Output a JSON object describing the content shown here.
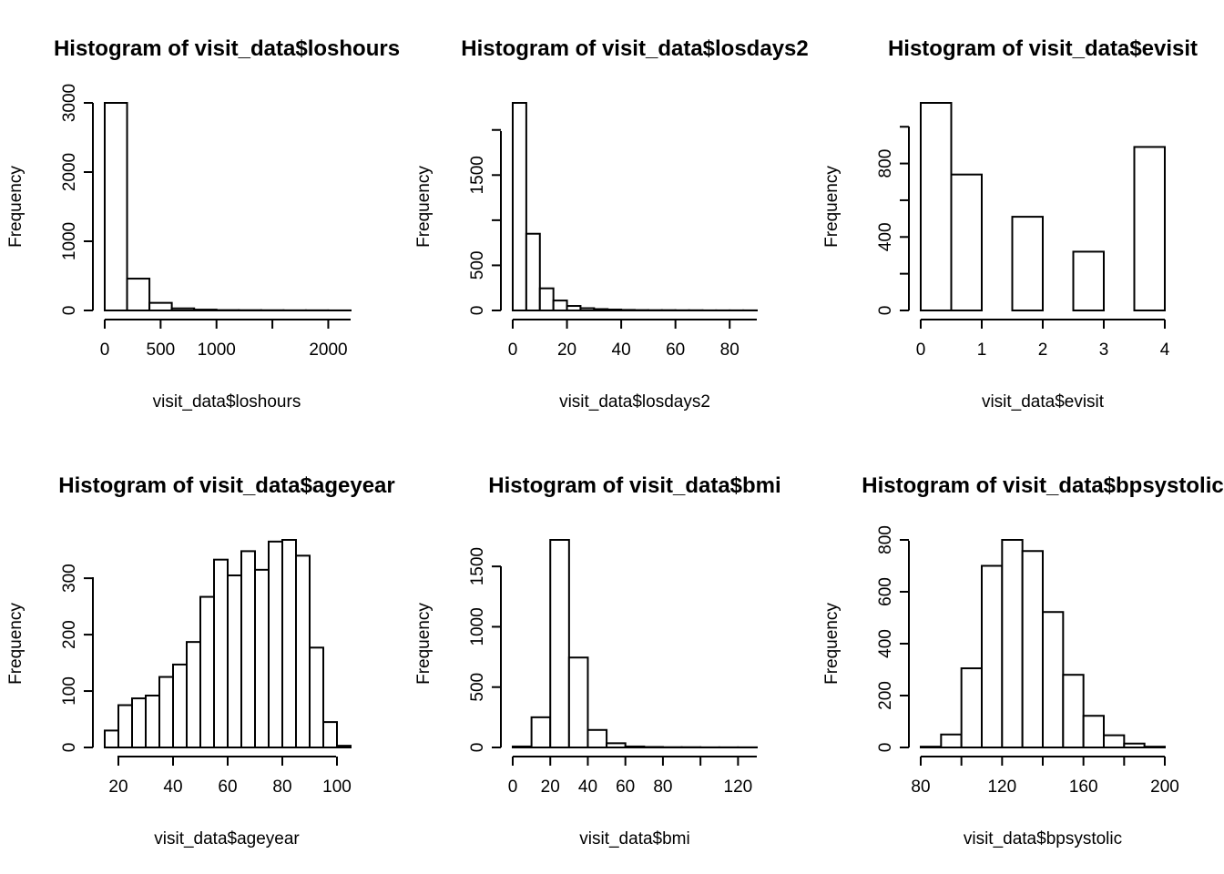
{
  "chart_data": [
    {
      "type": "bar",
      "title": "Histogram of visit_data$loshours",
      "xlabel": "visit_data$loshours",
      "ylabel": "Frequency",
      "x_ticks": [
        0,
        500,
        1000,
        2000
      ],
      "x_axis_range": [
        0,
        2200
      ],
      "y_ticks": [
        0,
        1000,
        2000,
        3000
      ],
      "y_axis_range": [
        0,
        3000
      ],
      "bin_edges": [
        0,
        200,
        400,
        600,
        800,
        1000,
        1200,
        1400,
        1600,
        1800,
        2000,
        2200
      ],
      "values": [
        3000,
        460,
        110,
        30,
        12,
        5,
        4,
        3,
        2,
        2,
        1
      ]
    },
    {
      "type": "bar",
      "title": "Histogram of visit_data$losdays2",
      "xlabel": "visit_data$losdays2",
      "ylabel": "Frequency",
      "x_ticks": [
        0,
        20,
        40,
        60,
        80
      ],
      "x_axis_range": [
        0,
        90
      ],
      "y_ticks": [
        0,
        500,
        1500
      ],
      "y_ticks_unlabeled": [
        1000,
        2000
      ],
      "y_axis_range": [
        0,
        2000
      ],
      "bin_edges": [
        0,
        5,
        10,
        15,
        20,
        25,
        30,
        35,
        40,
        45,
        50,
        55,
        60,
        65,
        70,
        75,
        80,
        85,
        90
      ],
      "values": [
        2300,
        850,
        245,
        110,
        50,
        25,
        15,
        10,
        6,
        4,
        3,
        3,
        2,
        2,
        1,
        1,
        1,
        1
      ]
    },
    {
      "type": "bar",
      "title": "Histogram of visit_data$evisit",
      "xlabel": "visit_data$evisit",
      "ylabel": "Frequency",
      "x_ticks": [
        0,
        1,
        2,
        3,
        4
      ],
      "x_axis_range": [
        0,
        4
      ],
      "y_ticks": [
        0,
        400,
        800
      ],
      "y_ticks_unlabeled": [
        200,
        600,
        1000
      ],
      "y_axis_range": [
        0,
        1000
      ],
      "bin_edges": [
        0,
        0.5,
        1,
        1.5,
        2,
        2.5,
        3,
        3.5,
        4
      ],
      "values": [
        1130,
        740,
        0,
        510,
        0,
        320,
        0,
        890
      ]
    },
    {
      "type": "bar",
      "title": "Histogram of visit_data$ageyear",
      "xlabel": "visit_data$ageyear",
      "ylabel": "Frequency",
      "x_ticks": [
        20,
        40,
        60,
        80,
        100
      ],
      "x_axis_range": [
        20,
        100
      ],
      "y_ticks": [
        0,
        100,
        200,
        300
      ],
      "y_axis_range": [
        0,
        300
      ],
      "bin_edges": [
        15,
        20,
        25,
        30,
        35,
        40,
        45,
        50,
        55,
        60,
        65,
        70,
        75,
        80,
        85,
        90,
        95,
        100,
        105
      ],
      "values": [
        30,
        75,
        87,
        92,
        125,
        147,
        187,
        267,
        333,
        305,
        348,
        315,
        365,
        368,
        340,
        177,
        45,
        3
      ]
    },
    {
      "type": "bar",
      "title": "Histogram of visit_data$bmi",
      "xlabel": "visit_data$bmi",
      "ylabel": "Frequency",
      "x_ticks": [
        0,
        20,
        40,
        60,
        80,
        120
      ],
      "x_axis_range": [
        0,
        130
      ],
      "y_ticks": [
        0,
        500,
        1000,
        1500
      ],
      "y_axis_range": [
        0,
        1500
      ],
      "bin_edges": [
        0,
        10,
        20,
        30,
        40,
        50,
        60,
        70,
        80,
        90,
        100,
        110,
        120,
        130
      ],
      "values": [
        8,
        250,
        1720,
        745,
        145,
        35,
        8,
        4,
        2,
        2,
        1,
        1,
        1
      ]
    },
    {
      "type": "bar",
      "title": "Histogram of visit_data$bpsystolic",
      "xlabel": "visit_data$bpsystolic",
      "ylabel": "Frequency",
      "x_ticks": [
        80,
        120,
        160,
        200
      ],
      "x_axis_range": [
        80,
        200
      ],
      "y_ticks": [
        0,
        200,
        400,
        600,
        800
      ],
      "y_axis_range": [
        0,
        800
      ],
      "bin_edges": [
        80,
        90,
        100,
        110,
        120,
        130,
        140,
        150,
        160,
        170,
        180,
        190,
        200
      ],
      "values": [
        3,
        50,
        305,
        700,
        800,
        757,
        522,
        280,
        122,
        47,
        15,
        3
      ]
    }
  ]
}
